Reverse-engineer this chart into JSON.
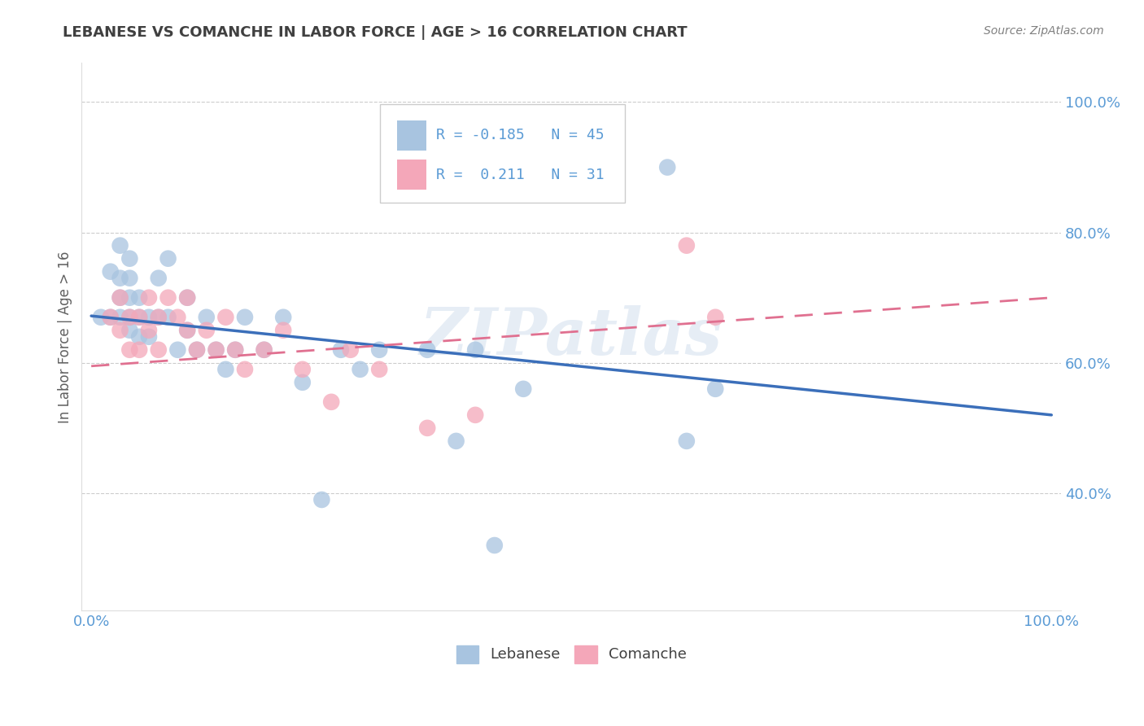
{
  "title": "LEBANESE VS COMANCHE IN LABOR FORCE | AGE > 16 CORRELATION CHART",
  "source": "Source: ZipAtlas.com",
  "ylabel": "In Labor Force | Age > 16",
  "xlim": [
    -0.01,
    1.01
  ],
  "ylim": [
    0.22,
    1.06
  ],
  "x_ticks": [
    0.0,
    0.2,
    0.4,
    0.6,
    0.8,
    1.0
  ],
  "x_tick_labels": [
    "0.0%",
    "",
    "",
    "",
    "",
    "100.0%"
  ],
  "y_ticks": [
    0.4,
    0.6,
    0.8,
    1.0
  ],
  "y_tick_labels": [
    "40.0%",
    "60.0%",
    "80.0%",
    "100.0%"
  ],
  "watermark": "ZIPatlas",
  "lebanese_color": "#a8c4e0",
  "comanche_color": "#f4a7b9",
  "line_lebanese_color": "#3b6fba",
  "line_comanche_color": "#e07090",
  "leb_line_x0": 0.0,
  "leb_line_y0": 0.672,
  "leb_line_x1": 1.0,
  "leb_line_y1": 0.52,
  "com_line_x0": 0.0,
  "com_line_y0": 0.595,
  "com_line_x1": 1.0,
  "com_line_y1": 0.7,
  "lebanese_x": [
    0.01,
    0.02,
    0.02,
    0.03,
    0.03,
    0.03,
    0.03,
    0.04,
    0.04,
    0.04,
    0.04,
    0.04,
    0.05,
    0.05,
    0.05,
    0.06,
    0.06,
    0.07,
    0.07,
    0.08,
    0.08,
    0.09,
    0.1,
    0.1,
    0.11,
    0.12,
    0.13,
    0.14,
    0.15,
    0.16,
    0.18,
    0.2,
    0.22,
    0.24,
    0.26,
    0.28,
    0.3,
    0.35,
    0.38,
    0.4,
    0.42,
    0.45,
    0.6,
    0.62,
    0.65
  ],
  "lebanese_y": [
    0.67,
    0.67,
    0.74,
    0.67,
    0.7,
    0.73,
    0.78,
    0.65,
    0.67,
    0.7,
    0.73,
    0.76,
    0.64,
    0.67,
    0.7,
    0.64,
    0.67,
    0.67,
    0.73,
    0.67,
    0.76,
    0.62,
    0.65,
    0.7,
    0.62,
    0.67,
    0.62,
    0.59,
    0.62,
    0.67,
    0.62,
    0.67,
    0.57,
    0.39,
    0.62,
    0.59,
    0.62,
    0.62,
    0.48,
    0.62,
    0.32,
    0.56,
    0.9,
    0.48,
    0.56
  ],
  "comanche_x": [
    0.02,
    0.03,
    0.03,
    0.04,
    0.04,
    0.05,
    0.05,
    0.06,
    0.06,
    0.07,
    0.07,
    0.08,
    0.09,
    0.1,
    0.1,
    0.11,
    0.12,
    0.13,
    0.14,
    0.15,
    0.16,
    0.18,
    0.2,
    0.22,
    0.25,
    0.27,
    0.3,
    0.35,
    0.4,
    0.62,
    0.65
  ],
  "comanche_y": [
    0.67,
    0.65,
    0.7,
    0.62,
    0.67,
    0.62,
    0.67,
    0.65,
    0.7,
    0.62,
    0.67,
    0.7,
    0.67,
    0.65,
    0.7,
    0.62,
    0.65,
    0.62,
    0.67,
    0.62,
    0.59,
    0.62,
    0.65,
    0.59,
    0.54,
    0.62,
    0.59,
    0.5,
    0.52,
    0.78,
    0.67
  ],
  "bg_color": "#ffffff",
  "grid_color": "#cccccc",
  "tick_color": "#5b9bd5",
  "title_color": "#404040",
  "source_color": "#808080",
  "ylabel_color": "#606060",
  "legend_box_color": "#e0e8f0",
  "legend_text_color": "#5b9bd5"
}
